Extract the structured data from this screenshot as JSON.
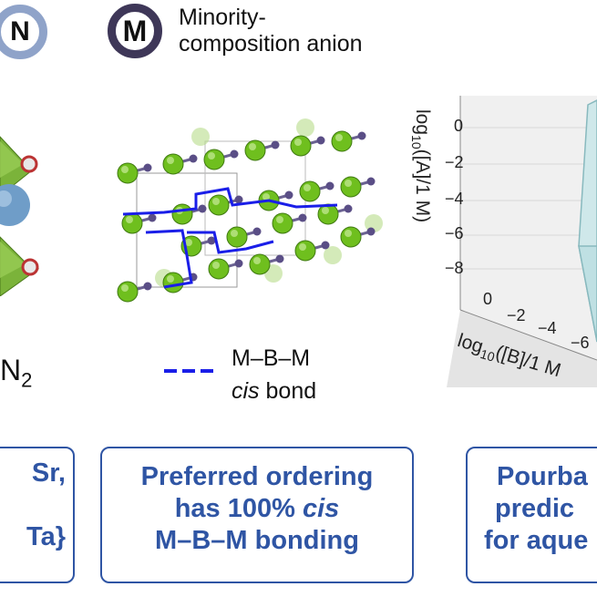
{
  "legend": {
    "n_badge": "N",
    "m_badge": "M",
    "minority_line1": "Minority-",
    "minority_line2": "composition anion",
    "cis_line1": "M–B–M",
    "cis_line2_italic": "cis",
    "cis_line2_rest": " bond"
  },
  "left_panel": {
    "formula_base": "N",
    "formula_sub": "2"
  },
  "plot3d": {
    "zlabel_prefix": "log",
    "zlabel_sub": "10",
    "zlabel_rest": "([A]/1 M)",
    "xlabel_prefix": "log",
    "xlabel_sub": "10",
    "xlabel_rest": "([B]/1 M",
    "z_ticks": [
      "0",
      "−2",
      "−4",
      "−6",
      "−8"
    ],
    "x_ticks": [
      "0",
      "−2",
      "−4",
      "−6"
    ]
  },
  "boxes": {
    "left": [
      "Sr,",
      "",
      "Ta}"
    ],
    "middle_line1": "Preferred ordering",
    "middle_line2_pre": "has 100% ",
    "middle_line2_italic": "cis",
    "middle_line3": "M–B–M bonding",
    "right": [
      "Pourba",
      "predic",
      "for aque"
    ]
  },
  "colors": {
    "box_blue": "#2f55a4",
    "bond_blue": "#1a1ee8",
    "green_atom": "#6fbf1e",
    "purple_atom": "#5a4e86",
    "n_ring": "#8fa3c9",
    "m_ring": "#3e3758"
  }
}
